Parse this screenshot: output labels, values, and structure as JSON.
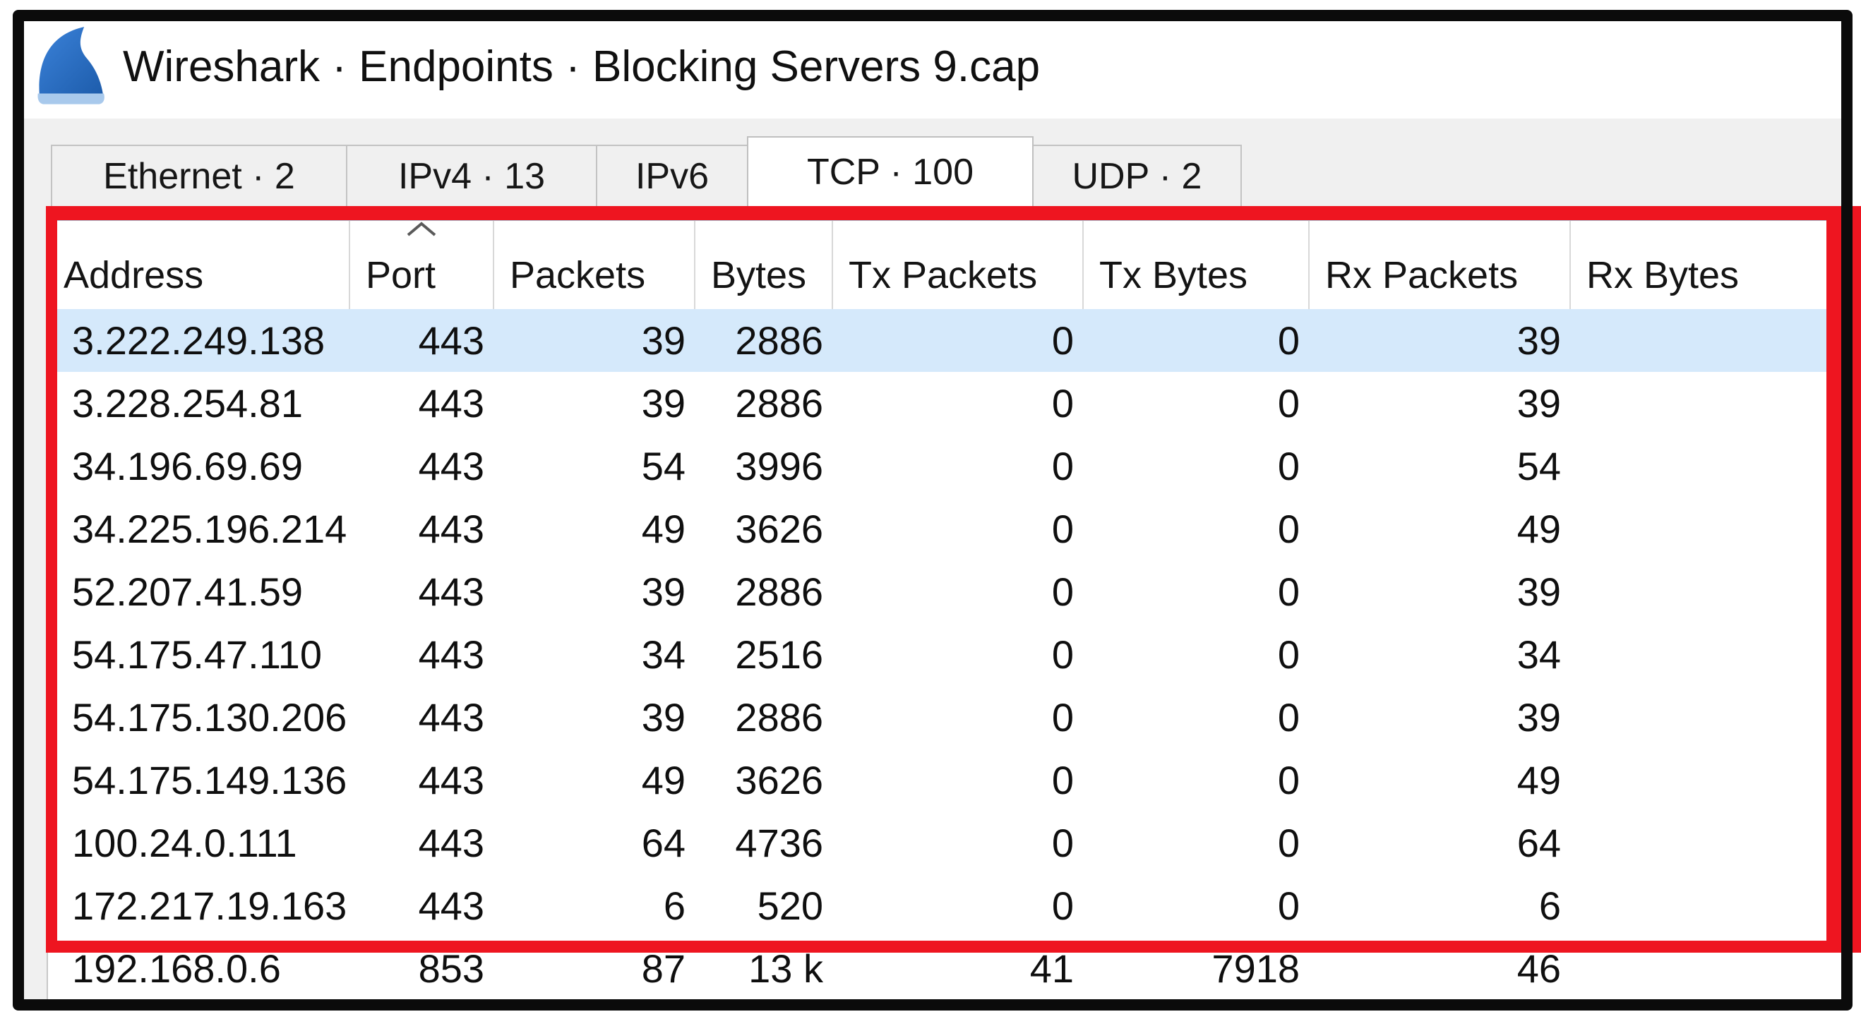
{
  "window": {
    "title": "Wireshark · Endpoints · Blocking Servers 9.cap",
    "icon": "wireshark-fin-icon"
  },
  "tabs": [
    {
      "label": "Ethernet · 2",
      "selected": false
    },
    {
      "label": "IPv4 · 13",
      "selected": false
    },
    {
      "label": "IPv6",
      "selected": false
    },
    {
      "label": "TCP · 100",
      "selected": true
    },
    {
      "label": "UDP · 2",
      "selected": false
    }
  ],
  "table": {
    "columns": [
      "Address",
      "Port",
      "Packets",
      "Bytes",
      "Tx Packets",
      "Tx Bytes",
      "Rx Packets",
      "Rx Bytes"
    ],
    "sort": {
      "column": "Port",
      "direction": "ascending"
    },
    "rows": [
      {
        "address": "3.222.249.138",
        "port": "443",
        "packets": "39",
        "bytes": "2886",
        "tx_packets": "0",
        "tx_bytes": "0",
        "rx_packets": "39",
        "rx_bytes": "",
        "selected": true
      },
      {
        "address": "3.228.254.81",
        "port": "443",
        "packets": "39",
        "bytes": "2886",
        "tx_packets": "0",
        "tx_bytes": "0",
        "rx_packets": "39",
        "rx_bytes": "",
        "selected": false
      },
      {
        "address": "34.196.69.69",
        "port": "443",
        "packets": "54",
        "bytes": "3996",
        "tx_packets": "0",
        "tx_bytes": "0",
        "rx_packets": "54",
        "rx_bytes": "",
        "selected": false
      },
      {
        "address": "34.225.196.214",
        "port": "443",
        "packets": "49",
        "bytes": "3626",
        "tx_packets": "0",
        "tx_bytes": "0",
        "rx_packets": "49",
        "rx_bytes": "",
        "selected": false
      },
      {
        "address": "52.207.41.59",
        "port": "443",
        "packets": "39",
        "bytes": "2886",
        "tx_packets": "0",
        "tx_bytes": "0",
        "rx_packets": "39",
        "rx_bytes": "",
        "selected": false
      },
      {
        "address": "54.175.47.110",
        "port": "443",
        "packets": "34",
        "bytes": "2516",
        "tx_packets": "0",
        "tx_bytes": "0",
        "rx_packets": "34",
        "rx_bytes": "",
        "selected": false
      },
      {
        "address": "54.175.130.206",
        "port": "443",
        "packets": "39",
        "bytes": "2886",
        "tx_packets": "0",
        "tx_bytes": "0",
        "rx_packets": "39",
        "rx_bytes": "",
        "selected": false
      },
      {
        "address": "54.175.149.136",
        "port": "443",
        "packets": "49",
        "bytes": "3626",
        "tx_packets": "0",
        "tx_bytes": "0",
        "rx_packets": "49",
        "rx_bytes": "",
        "selected": false
      },
      {
        "address": "100.24.0.111",
        "port": "443",
        "packets": "64",
        "bytes": "4736",
        "tx_packets": "0",
        "tx_bytes": "0",
        "rx_packets": "64",
        "rx_bytes": "",
        "selected": false
      },
      {
        "address": "172.217.19.163",
        "port": "443",
        "packets": "6",
        "bytes": "520",
        "tx_packets": "0",
        "tx_bytes": "0",
        "rx_packets": "6",
        "rx_bytes": "",
        "selected": false
      },
      {
        "address": "192.168.0.6",
        "port": "853",
        "packets": "87",
        "bytes": "13 k",
        "tx_packets": "41",
        "tx_bytes": "7918",
        "rx_packets": "46",
        "rx_bytes": "",
        "selected": false
      }
    ]
  },
  "annotation": {
    "type": "highlight-rectangle",
    "color": "#ee1520",
    "covers": "table header and first 10 rows"
  },
  "colors": {
    "selected_row": "#d5e9fb",
    "window_background": "#f0f0f0",
    "frame": "#0b0b0b",
    "wireshark_blue": "#2a6fc9"
  }
}
